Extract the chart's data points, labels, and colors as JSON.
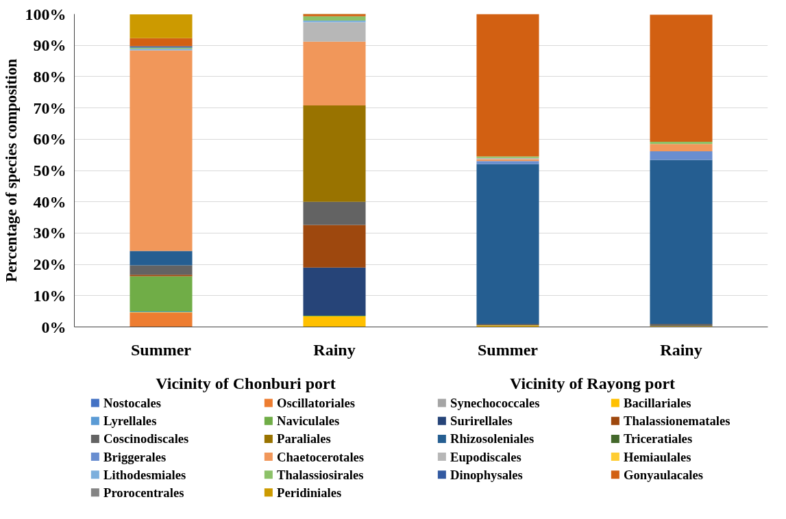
{
  "chart_data": {
    "type": "bar",
    "stacked": true,
    "ylabel": "Percentage of species composition",
    "categories": [
      "Summer",
      "Rainy",
      "Summer",
      "Rainy"
    ],
    "annotations": [
      "Vicinity  of Chonburi port",
      "Vicinity  of Rayong port"
    ],
    "ylim": [
      0,
      100
    ],
    "yticks": [
      {
        "value": 0,
        "label": "0%"
      },
      {
        "value": 10,
        "label": "10%"
      },
      {
        "value": 20,
        "label": "20%"
      },
      {
        "value": 30,
        "label": "30%"
      },
      {
        "value": 40,
        "label": "40%"
      },
      {
        "value": 50,
        "label": "50%"
      },
      {
        "value": 60,
        "label": "60%"
      },
      {
        "value": 70,
        "label": "70%"
      },
      {
        "value": 80,
        "label": "80%"
      },
      {
        "value": 90,
        "label": "90%"
      },
      {
        "value": 100,
        "label": "100%"
      }
    ],
    "grid": "y",
    "legend": "bottom",
    "series": [
      {
        "name": "Nostocales",
        "color": "#4472c4",
        "values": [
          0,
          0,
          0,
          0
        ]
      },
      {
        "name": "Oscillatoriales",
        "color": "#ed7d31",
        "values": [
          4.6,
          0,
          0,
          0
        ]
      },
      {
        "name": "Synechococcales",
        "color": "#a5a5a5",
        "values": [
          0,
          0,
          0,
          0
        ]
      },
      {
        "name": "Bacillariales",
        "color": "#ffc000",
        "values": [
          0.1,
          3.4,
          0.5,
          0.3
        ]
      },
      {
        "name": "Lyrellales",
        "color": "#5b9bd5",
        "values": [
          0.2,
          0,
          0,
          0
        ]
      },
      {
        "name": "Naviculales",
        "color": "#70ad47",
        "values": [
          11.3,
          0.2,
          0,
          0
        ]
      },
      {
        "name": "Surirellales",
        "color": "#264478",
        "values": [
          0,
          15.4,
          0,
          0
        ]
      },
      {
        "name": "Thalassionematales",
        "color": "#9e480e",
        "values": [
          0.5,
          13.6,
          0,
          0
        ]
      },
      {
        "name": "Coscinodiscales",
        "color": "#636363",
        "values": [
          3.0,
          7.4,
          0.5,
          0.7
        ]
      },
      {
        "name": "Paraliales",
        "color": "#997300",
        "values": [
          null,
          30.8,
          0,
          0
        ]
      },
      {
        "name": "Rhizosoleniales",
        "color": "#255e91",
        "values": [
          4.6,
          0,
          51.1,
          52.4
        ]
      },
      {
        "name": "Triceratiales",
        "color": "#43682b",
        "values": [
          0,
          0,
          0,
          null
        ]
      },
      {
        "name": "Briggerales",
        "color": "#698ed0",
        "values": [
          0,
          0,
          0.9,
          2.7
        ]
      },
      {
        "name": "Chaetocerotales",
        "color": "#f1975a",
        "values": [
          64.1,
          20.4,
          0.6,
          2.4
        ]
      },
      {
        "name": "Eupodiscales",
        "color": "#b7b7b7",
        "values": [
          0,
          6.2,
          0.4,
          0
        ]
      },
      {
        "name": "Hemiaulales",
        "color": "#ffcd33",
        "values": [
          0,
          0,
          0,
          0
        ]
      },
      {
        "name": "Lithodesmiales",
        "color": "#7cafdd",
        "values": [
          0.5,
          0.5,
          0,
          0
        ]
      },
      {
        "name": "Thalassiosirales",
        "color": "#8cc168",
        "values": [
          0.4,
          1.4,
          0.5,
          0.7
        ]
      },
      {
        "name": "Dinophysales",
        "color": "#335aa1",
        "values": [
          0.4,
          0,
          0,
          0
        ]
      },
      {
        "name": "Gonyaulacales",
        "color": "#d26012",
        "values": [
          2.6,
          0.8,
          45.5,
          40.6
        ]
      },
      {
        "name": "Prorocentrales",
        "color": "#848484",
        "values": [
          0,
          0,
          0,
          0
        ]
      },
      {
        "name": "Peridiniales",
        "color": "#cc9a00",
        "values": [
          7.6,
          0,
          0,
          0
        ]
      }
    ]
  }
}
